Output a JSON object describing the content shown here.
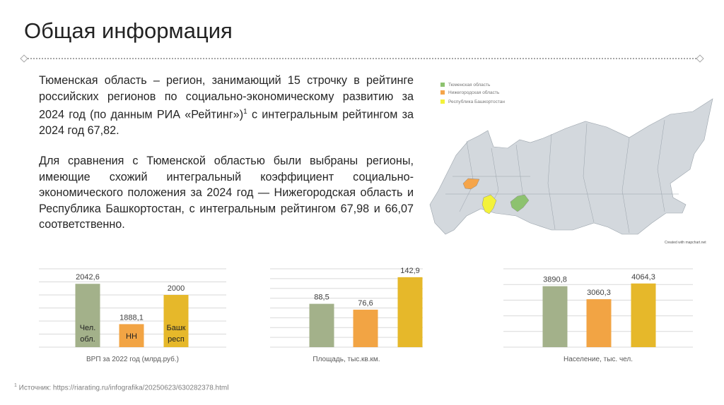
{
  "title": "Общая информация",
  "paragraphs": [
    {
      "text": "Тюменская область – регион, занимающий 15 строчку в рейтинге российских регионов по социально-экономическому развитию за 2024 год (по данным РИА «Рейтинг»)",
      "sup": "1",
      "tail": " с интегральным рейтингом за 2024 год 67,82."
    },
    {
      "text": "Для сравнения с Тюменской областью были выбраны регионы, имеющие схожий интегральный коэффициент социально-экономического положения за 2024 год — Нижегородская область и Республика Башкортостан, с интегральным рейтингом 67,98 и 66,07 соответственно."
    }
  ],
  "map": {
    "legend": [
      {
        "label": "Тюменская область",
        "color": "#8dc26f"
      },
      {
        "label": "Нижегородская область",
        "color": "#f5a54a"
      },
      {
        "label": "Республика Башкортостан",
        "color": "#f3f23a"
      }
    ],
    "base_color": "#d3d8dd",
    "credit": "Created with mapchart.net"
  },
  "chart_data": [
    {
      "type": "bar",
      "title": "ВРП за 2022 год (млрд.руб.)",
      "categories": [
        "Чел. обл.",
        "НН",
        "Башк респ"
      ],
      "values": [
        2042.6,
        1888.1,
        2000
      ],
      "value_labels": [
        "2042,6",
        "1888,1",
        "2000"
      ],
      "bar_labels": [
        [
          "Чел.",
          "обл."
        ],
        [
          "НН"
        ],
        [
          "Башк",
          "респ"
        ]
      ],
      "colors": [
        "#a3b18a",
        "#f2a444",
        "#e6b82a"
      ],
      "ylim": [
        1800,
        2100
      ],
      "grid_step": 50,
      "grid": true
    },
    {
      "type": "bar",
      "title": "Площадь, тыс.кв.км.",
      "values": [
        88.5,
        76.6,
        142.9
      ],
      "value_labels": [
        "88,5",
        "76,6",
        "142,9"
      ],
      "colors": [
        "#a3b18a",
        "#f2a444",
        "#e6b82a"
      ],
      "ylim": [
        0,
        160
      ],
      "grid_step": 20,
      "grid": true
    },
    {
      "type": "bar",
      "title": "Население, тыс. чел.",
      "values": [
        3890.8,
        3060.3,
        4064.3
      ],
      "value_labels": [
        "3890,8",
        "3060,3",
        "4064,3"
      ],
      "colors": [
        "#a3b18a",
        "#f2a444",
        "#e6b82a"
      ],
      "ylim": [
        0,
        5000
      ],
      "grid_step": 1000,
      "grid": true
    }
  ],
  "footnote": {
    "sup": "1",
    "text": " Источник: https://riarating.ru/infografika/20250623/630282378.html"
  }
}
